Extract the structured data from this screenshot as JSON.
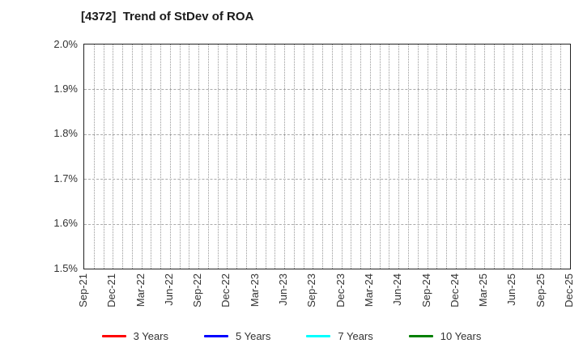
{
  "chart_data": {
    "type": "line",
    "title": "[4372]  Trend of StDev of ROA",
    "xlabel": "",
    "ylabel": "",
    "y_unit": "%",
    "ylim": [
      1.5,
      2.0
    ],
    "y_ticks": [
      2.0,
      1.9,
      1.8,
      1.7,
      1.6,
      1.5
    ],
    "y_tick_labels": [
      "2.0%",
      "1.9%",
      "1.8%",
      "1.7%",
      "1.6%",
      "1.5%"
    ],
    "x_tick_labels": [
      "Sep-21",
      "Dec-21",
      "Mar-22",
      "Jun-22",
      "Sep-22",
      "Dec-22",
      "Mar-23",
      "Jun-23",
      "Sep-23",
      "Dec-23",
      "Mar-24",
      "Jun-24",
      "Sep-24",
      "Dec-24",
      "Mar-25",
      "Jun-25",
      "Sep-25",
      "Dec-25"
    ],
    "x_minor_divisions_per_label": 3,
    "grid": {
      "vertical": "dotted, one line per month",
      "horizontal": "dashed, one line per 0.1%"
    },
    "legend_position": "bottom-center",
    "series": [
      {
        "name": "3 Years",
        "color": "#ff0000",
        "values": []
      },
      {
        "name": "5 Years",
        "color": "#0000ff",
        "values": []
      },
      {
        "name": "7 Years",
        "color": "#00ffff",
        "values": []
      },
      {
        "name": "10 Years",
        "color": "#008000",
        "values": []
      }
    ],
    "note": "No data points are visible within the displayed y-range; the plot area is empty."
  },
  "style_colors": {
    "vertical_grid": "#999999",
    "horizontal_grid": "#aaaaaa",
    "plot_border": "#222222",
    "tick_text": "#333333",
    "title_text": "#1a1a1a"
  }
}
